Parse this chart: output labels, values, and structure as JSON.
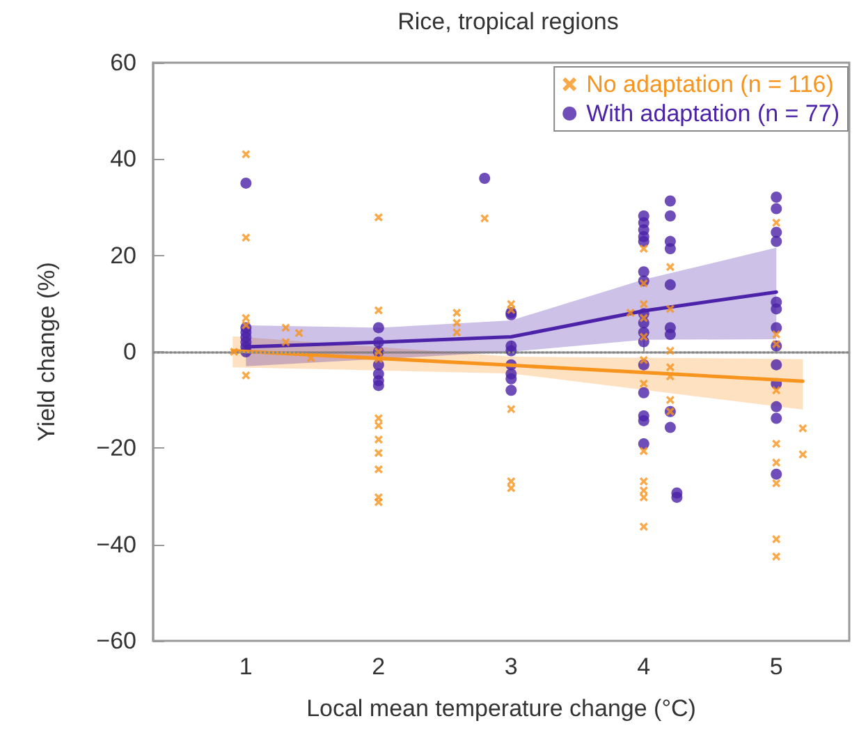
{
  "chart_data": {
    "type": "scatter",
    "title": "Rice, tropical regions",
    "xlabel": "Local mean temperature change (°C)",
    "ylabel": "Yield change (%)",
    "xlim": [
      0.3,
      5.55
    ],
    "xticks": [
      1,
      2,
      3,
      4,
      5
    ],
    "ylim": [
      -60,
      60
    ],
    "yticks": [
      -60,
      -40,
      -20,
      0,
      20,
      40,
      60
    ],
    "grid": false,
    "legend": "top right",
    "ref_lines": [
      {
        "axis": "y",
        "value": 0,
        "color": "#888888",
        "line_style": "dotted"
      }
    ],
    "series": [
      {
        "name": "No adaptation (n = 116)",
        "type": "scatter",
        "marker": "cross",
        "color": "#f7941d",
        "x": [
          1,
          1,
          1,
          1,
          1,
          0.91,
          1.3,
          1.4,
          1.3,
          1.49,
          2,
          2,
          2,
          2,
          2,
          2,
          2,
          2,
          2,
          2,
          2,
          2.59,
          2.59,
          2.59,
          2.8,
          3,
          3,
          3,
          3,
          3,
          3.9,
          4,
          4,
          4,
          4,
          4,
          4,
          4,
          4,
          4,
          4,
          4,
          4,
          4.2,
          4.2,
          4.2,
          4.2,
          4.2,
          4.2,
          4.2,
          5,
          5,
          5,
          5,
          5,
          5,
          5,
          5,
          5,
          5.2,
          5.2
        ],
        "values": [
          41,
          23.7,
          7,
          5.5,
          -4.9,
          0,
          5,
          3.9,
          2,
          -1.3,
          27.9,
          8.6,
          0,
          -1.5,
          -13.8,
          -15.3,
          -18.2,
          -21,
          -24.4,
          -30.2,
          -31.2,
          8.1,
          6,
          4,
          27.7,
          9.9,
          8.7,
          -11.9,
          -26.9,
          -28.3,
          8.1,
          21.4,
          14.2,
          9.9,
          7,
          3.1,
          -1.7,
          -6.6,
          -20.6,
          -26.9,
          -28.8,
          -30.2,
          -36.3,
          17.6,
          8.9,
          0.2,
          -3.2,
          -5.1,
          -10,
          -12.4,
          26.8,
          3.6,
          1.6,
          -8,
          -19.1,
          -23,
          -27.3,
          -38.9,
          -42.5,
          -15.9,
          -21.3
        ]
      },
      {
        "name": "With adaptation (n = 77)",
        "type": "scatter",
        "marker": "circle",
        "color": "#4b22a8",
        "x": [
          1,
          1,
          1,
          1,
          1,
          1,
          1,
          2,
          2,
          2,
          2,
          2,
          2,
          2,
          2.8,
          3,
          3,
          3,
          3,
          3,
          3,
          3,
          3,
          4,
          4,
          4,
          4,
          4,
          4,
          4,
          4,
          4,
          4,
          4,
          4,
          4,
          4,
          4,
          4,
          4.2,
          4.2,
          4.2,
          4.2,
          4.2,
          4.2,
          4.2,
          4.2,
          4.2,
          4.25,
          4.25,
          5,
          5,
          5,
          5,
          5,
          5,
          5,
          5,
          5,
          5,
          5,
          5,
          5
        ],
        "values": [
          35,
          5,
          4,
          3,
          2,
          1,
          0,
          5,
          2,
          0,
          -2.7,
          -4.6,
          -6,
          -7,
          36,
          8.1,
          7.7,
          1.2,
          0.2,
          -2.7,
          -4.6,
          -5.6,
          -8,
          28.2,
          26.8,
          25.3,
          23.9,
          22.9,
          16.6,
          14.7,
          7.9,
          6,
          4,
          2.1,
          -2.7,
          -8.5,
          -13.3,
          -14.3,
          -19.1,
          31.3,
          28.2,
          22.9,
          21.4,
          13.9,
          5,
          3.6,
          -12.4,
          -15.7,
          -29.3,
          -30.2,
          32.1,
          29.7,
          24.8,
          22.9,
          10.3,
          8.9,
          5,
          1.2,
          -2.7,
          -6.6,
          -11.4,
          -13.8,
          -25.4
        ]
      },
      {
        "type": "line",
        "marker": "none",
        "color": "#f7941d",
        "x": [
          0.9,
          3,
          5.2
        ],
        "values": [
          0.2,
          -2.8,
          -6.1
        ],
        "lower": [
          -3.2,
          -4.5,
          -12
        ],
        "upper": [
          3.2,
          -1,
          -1.5
        ]
      },
      {
        "type": "line",
        "marker": "none",
        "color": "#4b22a8",
        "x": [
          1,
          2,
          3,
          4,
          5
        ],
        "values": [
          1,
          2,
          3.1,
          8.5,
          12.4
        ],
        "lower": [
          -3,
          -1.5,
          0,
          2.5,
          2.6
        ],
        "upper": [
          5.5,
          5,
          6.5,
          15,
          21.6
        ]
      }
    ]
  }
}
